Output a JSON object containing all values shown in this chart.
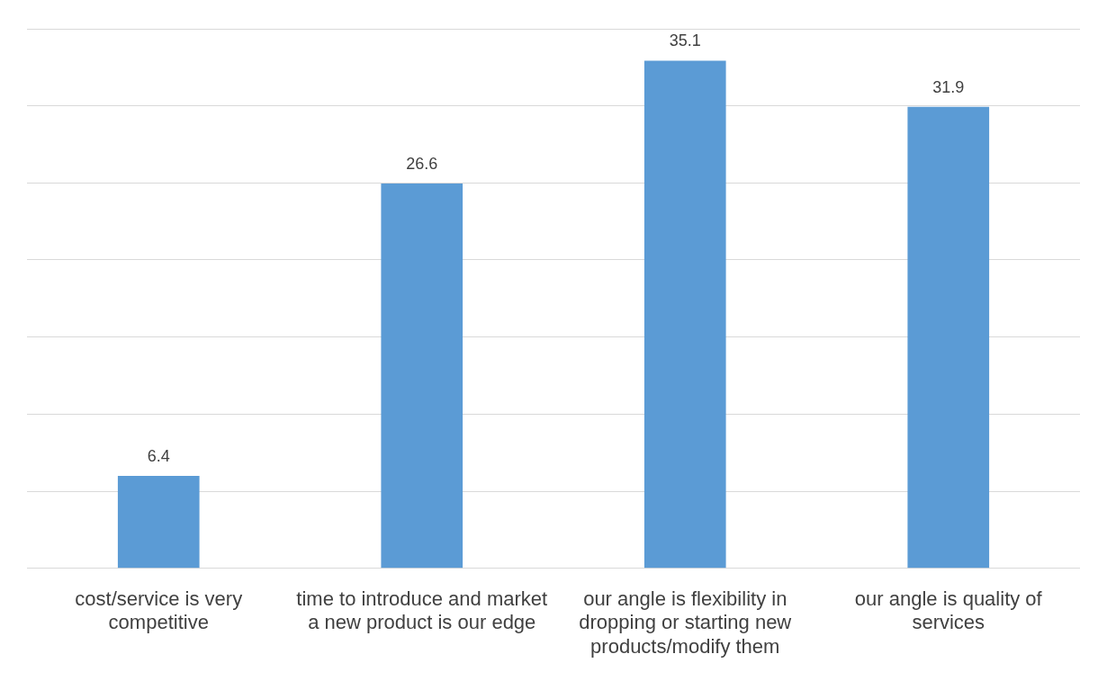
{
  "chart_data": {
    "type": "bar",
    "categories": [
      "cost/service is very competitive",
      "time to introduce and market a new product is our edge",
      "our angle is flexibility in dropping or starting new products/modify them",
      "our angle is quality of services"
    ],
    "values": [
      6.4,
      26.6,
      35.1,
      31.9
    ],
    "color": "#5b9bd5",
    "ylim": [
      0,
      37.3
    ],
    "yticks": [
      {
        "value": 0,
        "label": null
      },
      {
        "value": 5.33,
        "label": null
      },
      {
        "value": 10.66,
        "label": null
      },
      {
        "value": 16,
        "label": null
      },
      {
        "value": 21.33,
        "label": null
      },
      {
        "value": 26.66,
        "label": null
      },
      {
        "value": 32,
        "label": null
      },
      {
        "value": 37.3,
        "label": null
      }
    ],
    "grid": "y",
    "tick_labels": "x",
    "data_labels": true,
    "legend": false
  }
}
